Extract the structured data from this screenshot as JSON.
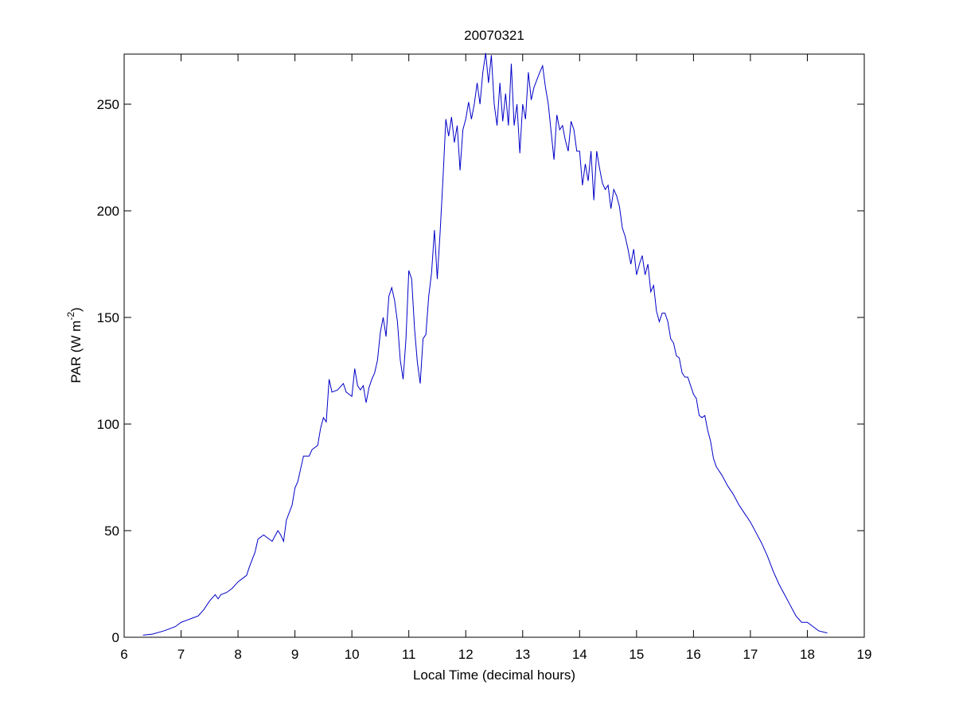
{
  "chart_data": {
    "type": "line",
    "title": "20070321",
    "xlabel": "Local Time (decimal hours)",
    "ylabel": [
      "PAR (W m",
      "-2",
      ")"
    ],
    "xlim": [
      6,
      19
    ],
    "xticks": [
      6,
      7,
      8,
      9,
      10,
      11,
      12,
      13,
      14,
      15,
      16,
      17,
      18,
      19
    ],
    "ylim": [
      0,
      273.5
    ],
    "yticks": [
      0,
      50,
      100,
      150,
      200,
      250
    ],
    "box": true,
    "series": [
      {
        "color": "#0000c8",
        "x": [
          6.33,
          6.5,
          6.7,
          6.9,
          7.0,
          7.1,
          7.2,
          7.3,
          7.4,
          7.5,
          7.6,
          7.65,
          7.7,
          7.8,
          7.9,
          8.0,
          8.1,
          8.15,
          8.2,
          8.3,
          8.35,
          8.45,
          8.55,
          8.6,
          8.7,
          8.75,
          8.8,
          8.85,
          8.95,
          9.0,
          9.05,
          9.15,
          9.25,
          9.3,
          9.4,
          9.45,
          9.5,
          9.55,
          9.6,
          9.65,
          9.75,
          9.85,
          9.9,
          9.95,
          10.0,
          10.05,
          10.1,
          10.15,
          10.2,
          10.25,
          10.3,
          10.35,
          10.4,
          10.45,
          10.5,
          10.55,
          10.6,
          10.65,
          10.7,
          10.75,
          10.8,
          10.85,
          10.9,
          10.95,
          11.0,
          11.05,
          11.1,
          11.15,
          11.2,
          11.25,
          11.3,
          11.35,
          11.4,
          11.45,
          11.5,
          11.55,
          11.6,
          11.65,
          11.7,
          11.75,
          11.8,
          11.85,
          11.9,
          11.95,
          12.0,
          12.05,
          12.1,
          12.15,
          12.2,
          12.25,
          12.3,
          12.35,
          12.4,
          12.45,
          12.5,
          12.55,
          12.6,
          12.65,
          12.7,
          12.75,
          12.8,
          12.85,
          12.9,
          12.95,
          13.0,
          13.05,
          13.1,
          13.15,
          13.2,
          13.3,
          13.35,
          13.4,
          13.45,
          13.5,
          13.55,
          13.6,
          13.65,
          13.7,
          13.75,
          13.8,
          13.85,
          13.9,
          13.95,
          14.0,
          14.05,
          14.1,
          14.15,
          14.2,
          14.25,
          14.3,
          14.35,
          14.4,
          14.45,
          14.5,
          14.55,
          14.6,
          14.65,
          14.7,
          14.75,
          14.8,
          14.85,
          14.9,
          14.95,
          15.0,
          15.05,
          15.1,
          15.15,
          15.2,
          15.25,
          15.3,
          15.35,
          15.4,
          15.45,
          15.5,
          15.55,
          15.6,
          15.65,
          15.7,
          15.75,
          15.8,
          15.85,
          15.9,
          15.95,
          16.0,
          16.05,
          16.1,
          16.15,
          16.2,
          16.25,
          16.3,
          16.35,
          16.4,
          16.5,
          16.6,
          16.7,
          16.8,
          16.9,
          17.0,
          17.1,
          17.2,
          17.3,
          17.4,
          17.5,
          17.6,
          17.7,
          17.8,
          17.9,
          18.0,
          18.1,
          18.2,
          18.35
        ],
        "values": [
          1,
          1.5,
          3,
          5,
          7,
          8,
          9,
          10,
          13,
          17,
          20,
          18,
          20,
          21,
          23,
          26,
          28,
          29,
          33,
          40,
          46,
          48,
          46,
          45,
          50,
          48,
          45,
          55,
          62,
          70,
          73,
          85,
          85,
          88,
          90,
          98,
          103,
          101,
          121,
          115,
          116,
          119,
          115,
          114,
          113,
          126,
          118,
          116,
          118,
          110,
          117,
          121,
          124,
          130,
          143,
          150,
          141,
          160,
          164,
          158,
          148,
          130,
          121,
          140,
          172,
          168,
          145,
          129,
          119,
          140,
          142,
          160,
          171,
          191,
          168,
          190,
          215,
          243,
          235,
          244,
          232,
          240,
          219,
          238,
          243,
          251,
          243,
          250,
          260,
          250,
          265,
          274,
          260,
          273,
          250,
          240,
          260,
          242,
          255,
          240,
          269,
          240,
          250,
          227,
          250,
          243,
          265,
          252,
          258,
          265,
          268,
          258,
          250,
          237,
          224,
          245,
          238,
          240,
          233,
          228,
          242,
          238,
          228,
          228,
          212,
          222,
          214,
          228,
          205,
          228,
          220,
          213,
          210,
          212,
          201,
          210,
          207,
          202,
          192,
          188,
          182,
          175,
          182,
          170,
          175,
          179,
          170,
          175,
          162,
          165,
          153,
          148,
          152,
          152,
          148,
          140,
          138,
          132,
          131,
          124,
          122,
          122,
          118,
          114,
          112,
          104,
          103,
          104,
          97,
          92,
          84,
          80,
          76,
          71,
          67,
          62,
          58,
          54,
          49,
          44,
          38,
          31,
          25,
          20,
          15,
          10,
          7,
          7,
          5,
          3,
          2
        ]
      }
    ]
  }
}
